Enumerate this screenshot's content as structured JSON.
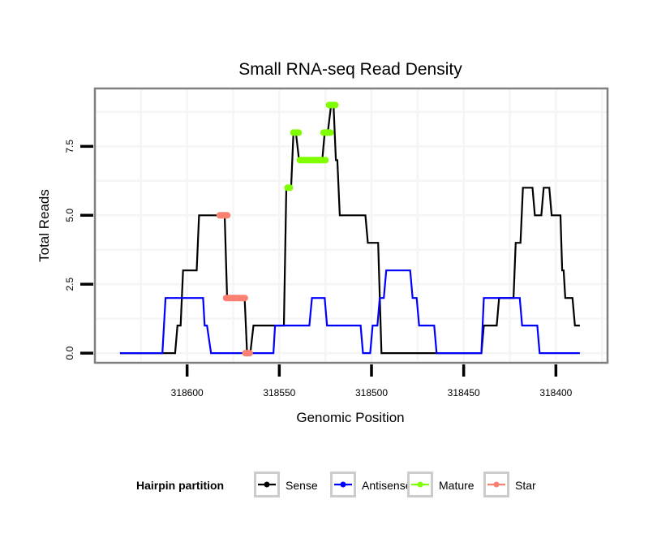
{
  "chart_data": {
    "type": "line",
    "title": "Small RNA-seq Read Density",
    "xlabel": "Genomic Position",
    "ylabel": "Total Reads",
    "x_reversed": true,
    "xlim": [
      318650,
      318372
    ],
    "ylim": [
      -0.35,
      9.6
    ],
    "x_ticks": [
      318600,
      318550,
      318500,
      318450,
      318400
    ],
    "x_tick_labels": [
      "318600",
      "318550",
      "318500",
      "318450",
      "318400"
    ],
    "y_ticks": [
      0.0,
      2.5,
      5.0,
      7.5
    ],
    "y_tick_labels": [
      "0.0",
      "2.5",
      "5.0",
      "7.5"
    ],
    "grid": true,
    "legend": {
      "title": "Hairpin partition",
      "placement": "bottom",
      "entries": [
        {
          "name": "Sense",
          "color": "#000000"
        },
        {
          "name": "Antisense",
          "color": "#0000ff"
        },
        {
          "name": "Mature",
          "color": "#7fff00"
        },
        {
          "name": "Star",
          "color": "#fa8072"
        }
      ]
    },
    "series": [
      {
        "name": "Sense",
        "color": "#000000",
        "points": [
          [
            318636.4,
            0
          ],
          [
            318606.5,
            0
          ],
          [
            318605.2,
            1
          ],
          [
            318603.5,
            1
          ],
          [
            318602.2,
            3
          ],
          [
            318594.8,
            3
          ],
          [
            318593.5,
            5
          ],
          [
            318579.6,
            5
          ],
          [
            318578.3,
            2
          ],
          [
            318568.8,
            2
          ],
          [
            318567.5,
            0
          ],
          [
            318565.7,
            0
          ],
          [
            318564.0,
            1
          ],
          [
            318547.5,
            1
          ],
          [
            318546.2,
            6
          ],
          [
            318543.6,
            6
          ],
          [
            318542.3,
            8
          ],
          [
            318541.0,
            8
          ],
          [
            318539.3,
            7
          ],
          [
            318526.7,
            7
          ],
          [
            318525.4,
            8
          ],
          [
            318523.7,
            8
          ],
          [
            318521.9,
            9
          ],
          [
            318520.6,
            9
          ],
          [
            318519.3,
            7
          ],
          [
            318518.5,
            7
          ],
          [
            318517.2,
            5
          ],
          [
            318503.3,
            5
          ],
          [
            318502.0,
            4
          ],
          [
            318496.4,
            4
          ],
          [
            318494.6,
            0
          ],
          [
            318440.4,
            0
          ],
          [
            318439.1,
            1
          ],
          [
            318432.1,
            1
          ],
          [
            318430.8,
            2
          ],
          [
            318423.0,
            2
          ],
          [
            318421.8,
            4
          ],
          [
            318419.2,
            4
          ],
          [
            318417.9,
            6
          ],
          [
            318412.7,
            6
          ],
          [
            318411.4,
            5
          ],
          [
            318407.9,
            5
          ],
          [
            318406.6,
            6
          ],
          [
            318403.6,
            6
          ],
          [
            318402.3,
            5
          ],
          [
            318397.5,
            5
          ],
          [
            318396.6,
            3
          ],
          [
            318395.8,
            3
          ],
          [
            318394.9,
            2
          ],
          [
            318391.0,
            2
          ],
          [
            318389.7,
            1
          ],
          [
            318387.0,
            1
          ]
        ]
      },
      {
        "name": "Antisense",
        "color": "#0000ff",
        "points": [
          [
            318636.4,
            0
          ],
          [
            318613.4,
            0
          ],
          [
            318611.7,
            2
          ],
          [
            318591.3,
            2
          ],
          [
            318590.5,
            1
          ],
          [
            318589.2,
            1
          ],
          [
            318587.0,
            0
          ],
          [
            318553.2,
            0
          ],
          [
            318552.3,
            1
          ],
          [
            318533.7,
            1
          ],
          [
            318532.3,
            2
          ],
          [
            318525.4,
            2
          ],
          [
            318524.1,
            1
          ],
          [
            318505.9,
            1
          ],
          [
            318504.6,
            0
          ],
          [
            318500.7,
            0
          ],
          [
            318499.4,
            1
          ],
          [
            318496.8,
            1
          ],
          [
            318495.5,
            2
          ],
          [
            318493.3,
            2
          ],
          [
            318492.0,
            3
          ],
          [
            318479.0,
            3
          ],
          [
            318477.7,
            2
          ],
          [
            318475.5,
            2
          ],
          [
            318474.2,
            1
          ],
          [
            318466.0,
            1
          ],
          [
            318464.7,
            0
          ],
          [
            318440.4,
            0
          ],
          [
            318439.1,
            2
          ],
          [
            318419.6,
            2
          ],
          [
            318418.3,
            1
          ],
          [
            318410.1,
            1
          ],
          [
            318408.8,
            0
          ],
          [
            318387.0,
            0
          ]
        ]
      },
      {
        "name": "Mature",
        "color": "#7fff00",
        "marker_segments": [
          [
            318546.0,
            318543.8,
            6
          ],
          [
            318542.8,
            318539.0,
            8
          ],
          [
            318539.3,
            318524.5,
            7
          ],
          [
            318526.5,
            318521.8,
            8
          ],
          [
            318523.5,
            318519.2,
            9
          ]
        ]
      },
      {
        "name": "Star",
        "color": "#fa8072",
        "marker_segments": [
          [
            318582.8,
            318577.8,
            5
          ],
          [
            318579.3,
            318568.2,
            2
          ],
          [
            318568.9,
            318565.6,
            0
          ]
        ]
      }
    ]
  }
}
